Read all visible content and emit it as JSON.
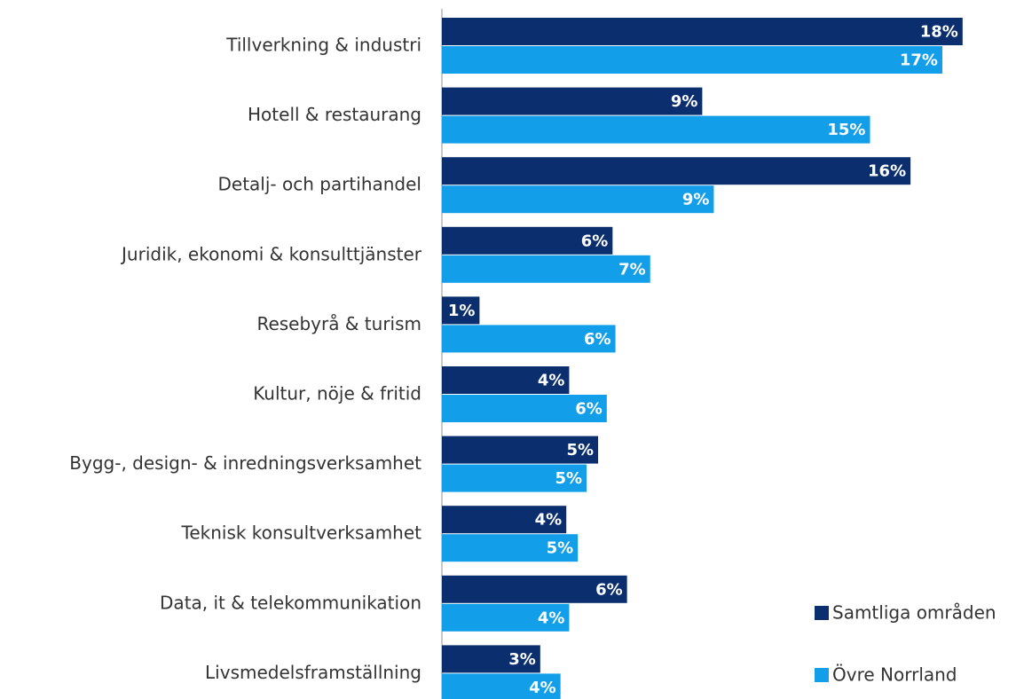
{
  "chart_data": {
    "type": "hbar",
    "categories": [
      "Tillverkning & industri",
      "Hotell & restaurang",
      "Detalj- och partihandel",
      "Juridik, ekonomi & konsulttjänster",
      "Resebyrå & turism",
      "Kultur, nöje & fritid",
      "Bygg-, design- & inredningsverksamhet",
      "Teknisk konsultverksamhet",
      "Data, it & telekommunikation",
      "Livsmedelsframställning"
    ],
    "series": [
      {
        "name": "Samtliga områden",
        "color": "#0b2e6f",
        "values": [
          18.0,
          9.0,
          16.2,
          5.9,
          1.3,
          4.4,
          5.4,
          4.3,
          6.4,
          3.4
        ],
        "value_labels": [
          "18%",
          "9%",
          "16%",
          "6%",
          "1%",
          "4%",
          "5%",
          "4%",
          "6%",
          "3%"
        ]
      },
      {
        "name": "Övre Norrland",
        "color": "#139ee9",
        "values": [
          17.3,
          14.8,
          9.4,
          7.2,
          6.0,
          5.7,
          5.0,
          4.7,
          4.4,
          4.1
        ],
        "value_labels": [
          "17%",
          "15%",
          "9%",
          "7%",
          "6%",
          "6%",
          "5%",
          "5%",
          "4%",
          "4%"
        ]
      }
    ],
    "xlim": [
      0,
      20
    ]
  }
}
